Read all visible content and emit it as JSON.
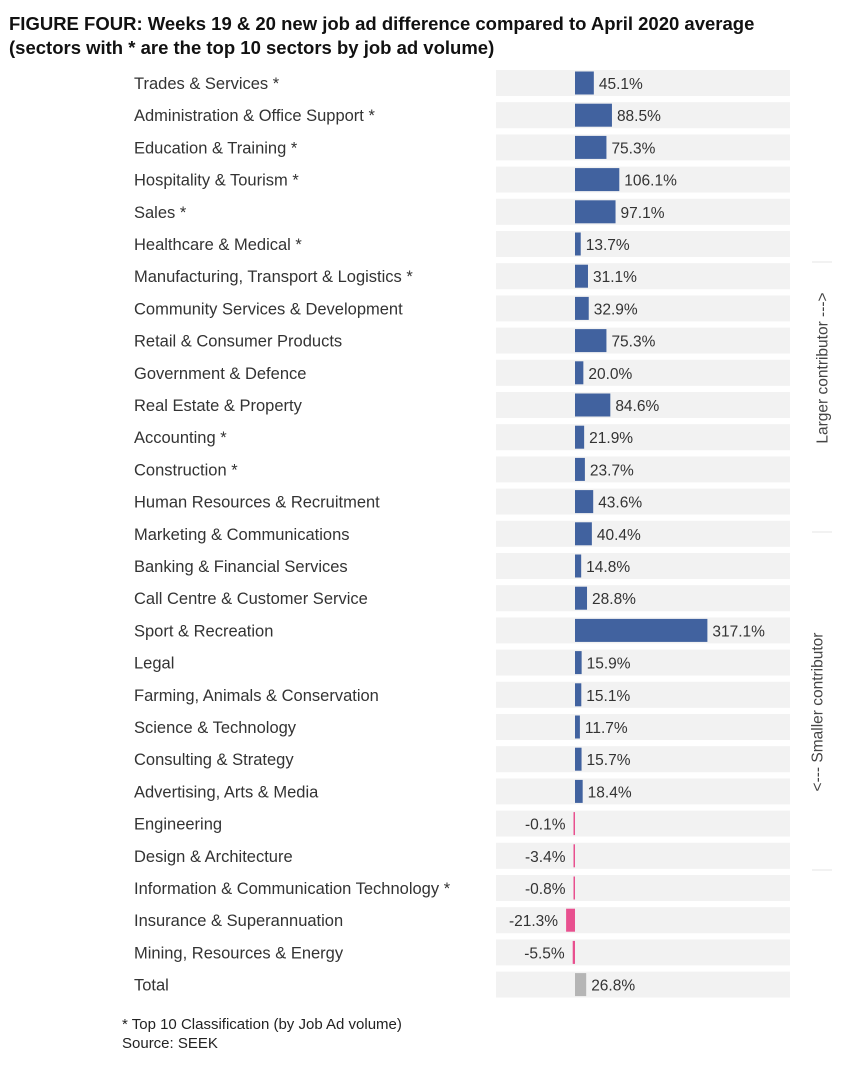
{
  "title": {
    "line1": "FIGURE FOUR: Weeks 19 & 20 new job ad difference compared to April 2020 average",
    "line2": "(sectors with * are the top 10 sectors by job ad volume)"
  },
  "chart_data": {
    "type": "bar",
    "orientation": "horizontal",
    "title": "FIGURE FOUR: Weeks 19 & 20 new job ad difference compared to April 2020 average (sectors with * are the top 10 sectors by job ad volume)",
    "categories": [
      "Trades & Services *",
      "Administration & Office Support *",
      "Education & Training *",
      "Hospitality & Tourism *",
      "Sales *",
      "Healthcare & Medical *",
      "Manufacturing, Transport & Logistics *",
      "Community Services & Development",
      "Retail & Consumer Products",
      "Government & Defence",
      "Real Estate & Property",
      "Accounting *",
      "Construction *",
      "Human Resources & Recruitment",
      "Marketing & Communications",
      "Banking & Financial Services",
      "Call Centre & Customer Service",
      "Sport & Recreation",
      "Legal",
      "Farming, Animals & Conservation",
      "Science & Technology",
      "Consulting & Strategy",
      "Advertising, Arts & Media",
      "Engineering",
      "Design & Architecture",
      "Information & Communication Technology *",
      "Insurance & Superannuation",
      "Mining, Resources & Energy",
      "Total"
    ],
    "values": [
      45.1,
      88.5,
      75.3,
      106.1,
      97.1,
      13.7,
      31.1,
      32.9,
      75.3,
      20.0,
      84.6,
      21.9,
      23.7,
      43.6,
      40.4,
      14.8,
      28.8,
      317.1,
      15.9,
      15.1,
      11.7,
      15.7,
      18.4,
      -0.1,
      -3.4,
      -0.8,
      -21.3,
      -5.5,
      26.8
    ],
    "value_labels": [
      "45.1%",
      "88.5%",
      "75.3%",
      "106.1%",
      "97.1%",
      "13.7%",
      "31.1%",
      "32.9%",
      "75.3%",
      "20.0%",
      "84.6%",
      "21.9%",
      "23.7%",
      "43.6%",
      "40.4%",
      "14.8%",
      "28.8%",
      "317.1%",
      "15.9%",
      "15.1%",
      "11.7%",
      "15.7%",
      "18.4%",
      "-0.1%",
      "-3.4%",
      "-0.8%",
      "-21.3%",
      "-5.5%",
      "26.8%"
    ],
    "unit": "%",
    "side_labels": {
      "top": "Larger contributor --->",
      "bottom": "<--- Smaller contributor"
    },
    "colors": {
      "positive": "#41629f",
      "negative": "#e8508f",
      "total": "#b5b5b5",
      "row_background": "#f2f2f2"
    }
  },
  "footnote": {
    "line1": "* Top 10 Classification (by Job Ad volume)",
    "line2": "Source: SEEK"
  }
}
